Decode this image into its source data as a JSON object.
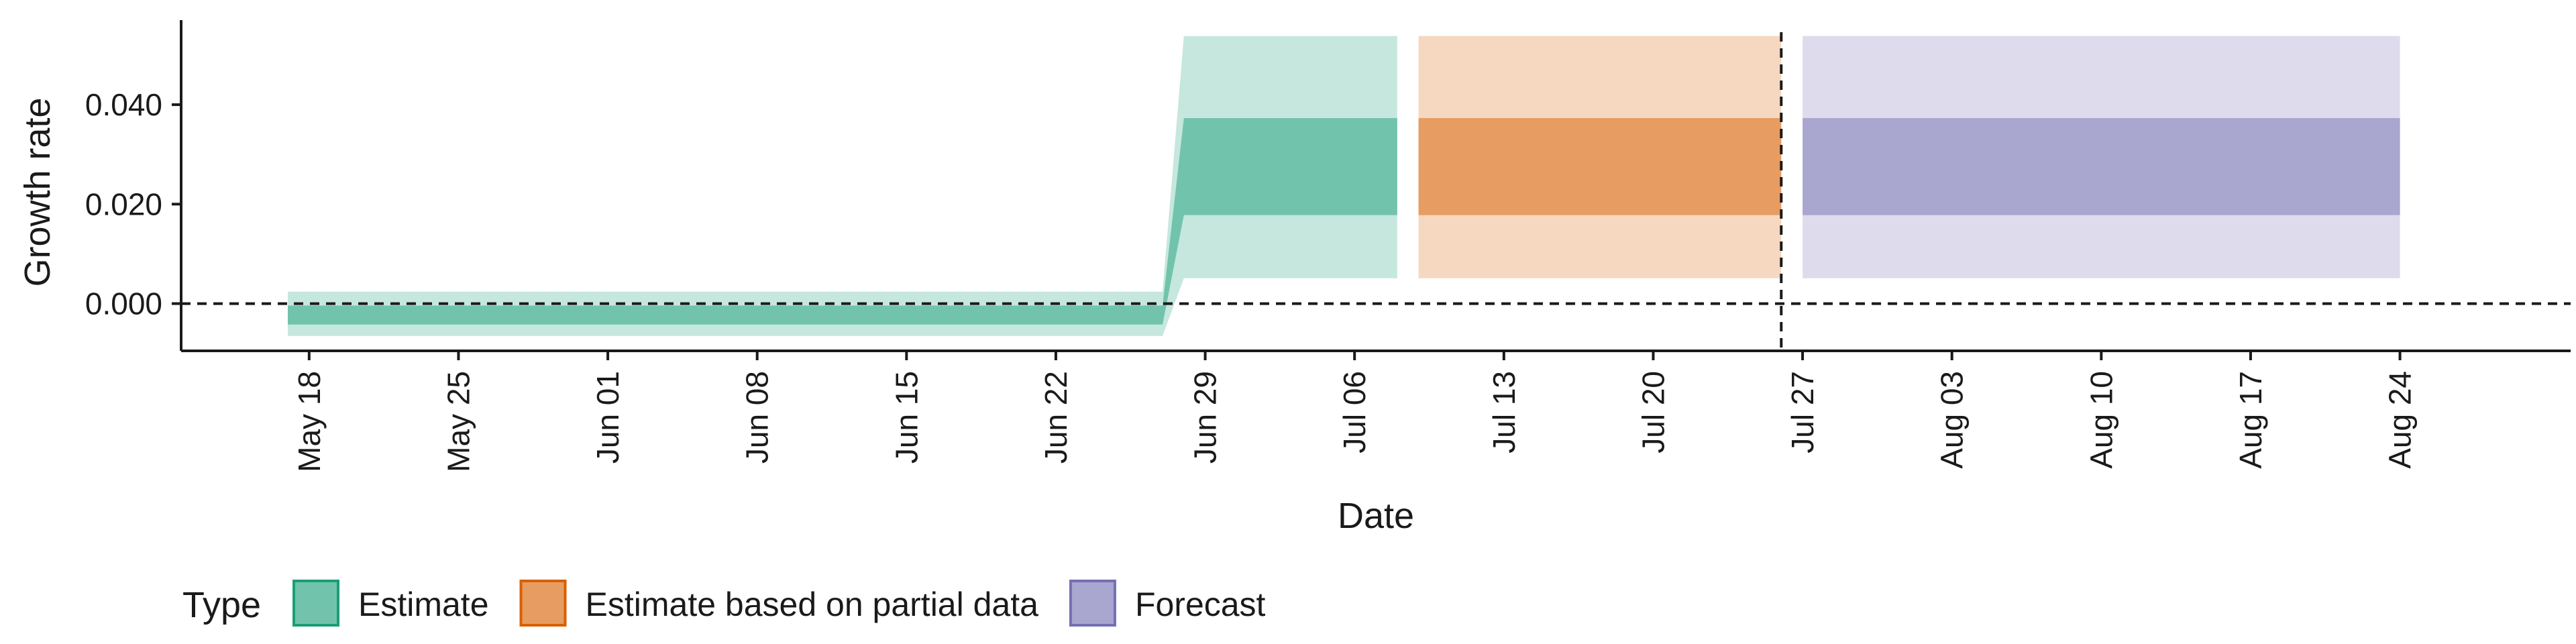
{
  "chart_data": {
    "type": "area",
    "xlabel": "Date",
    "ylabel": "Growth rate",
    "x_range": [
      "2020-05-12",
      "2020-09-01"
    ],
    "ylim": [
      -0.0095,
      0.057
    ],
    "x_ticks": [
      {
        "date": "2020-05-18",
        "label": "May 18"
      },
      {
        "date": "2020-05-25",
        "label": "May 25"
      },
      {
        "date": "2020-06-01",
        "label": "Jun 01"
      },
      {
        "date": "2020-06-08",
        "label": "Jun 08"
      },
      {
        "date": "2020-06-15",
        "label": "Jun 15"
      },
      {
        "date": "2020-06-22",
        "label": "Jun 22"
      },
      {
        "date": "2020-06-29",
        "label": "Jun 29"
      },
      {
        "date": "2020-07-06",
        "label": "Jul 06"
      },
      {
        "date": "2020-07-13",
        "label": "Jul 13"
      },
      {
        "date": "2020-07-20",
        "label": "Jul 20"
      },
      {
        "date": "2020-07-27",
        "label": "Jul 27"
      },
      {
        "date": "2020-08-03",
        "label": "Aug 03"
      },
      {
        "date": "2020-08-10",
        "label": "Aug 10"
      },
      {
        "date": "2020-08-17",
        "label": "Aug 17"
      },
      {
        "date": "2020-08-24",
        "label": "Aug 24"
      }
    ],
    "y_ticks": [
      {
        "value": 0.0,
        "label": "0.000"
      },
      {
        "value": 0.02,
        "label": "0.020"
      },
      {
        "value": 0.04,
        "label": "0.040"
      }
    ],
    "reference_lines": {
      "horizontal_y": 0.0,
      "vertical_x": "2020-07-26",
      "style": "dashed"
    },
    "grid": false,
    "legend": {
      "title": "Type",
      "position": "bottom-left"
    },
    "series": [
      {
        "name": "Estimate",
        "color": "#1b9e77",
        "x": [
          "2020-05-17",
          "2020-06-27",
          "2020-06-28",
          "2020-07-08"
        ],
        "lower_90": [
          -0.0065,
          -0.0065,
          0.0051,
          0.0051
        ],
        "upper_90": [
          0.0024,
          0.0024,
          0.0538,
          0.0538
        ],
        "lower_50": [
          -0.0042,
          -0.0042,
          0.0178,
          0.0178
        ],
        "upper_50": [
          -0.0004,
          -0.0004,
          0.0373,
          0.0373
        ]
      },
      {
        "name": "Estimate based on partial data",
        "color": "#d95f02",
        "x": [
          "2020-07-09",
          "2020-07-26"
        ],
        "lower_90": [
          0.0051,
          0.0051
        ],
        "upper_90": [
          0.0538,
          0.0538
        ],
        "lower_50": [
          0.0178,
          0.0178
        ],
        "upper_50": [
          0.0373,
          0.0373
        ]
      },
      {
        "name": "Forecast",
        "color": "#7570b3",
        "x": [
          "2020-07-27",
          "2020-08-24"
        ],
        "lower_90": [
          0.0051,
          0.0051
        ],
        "upper_90": [
          0.0538,
          0.0538
        ],
        "lower_50": [
          0.0178,
          0.0178
        ],
        "upper_50": [
          0.0373,
          0.0373
        ]
      }
    ]
  }
}
